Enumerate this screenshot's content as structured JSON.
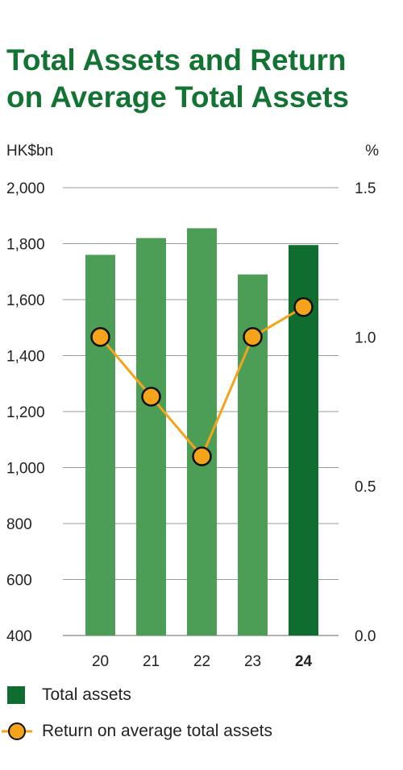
{
  "title_line1": "Total Assets and Return",
  "title_line2": "on Average Total Assets",
  "legend": {
    "total_assets": "Total assets",
    "return": "Return on average total assets"
  },
  "colors": {
    "title": "#137333",
    "bar": "#4c9e57",
    "bar_highlight": "#0f6e2f",
    "line": "#f5a31a",
    "marker_fill": "#f5a31a",
    "marker_stroke": "#111111"
  },
  "chart_data": {
    "type": "bar",
    "categories": [
      "20",
      "21",
      "22",
      "23",
      "24"
    ],
    "highlight_category": "24",
    "left_unit": "HK$bn",
    "right_unit": "%",
    "left_ticks": [
      "2,000",
      "1,800",
      "1,600",
      "1,400",
      "1,200",
      "1,000",
      "800",
      "600",
      "400"
    ],
    "right_ticks": [
      "1.5",
      "1.0",
      "0.5",
      "0.0"
    ],
    "ylim_left": [
      400,
      2000
    ],
    "ylim_right": [
      0.0,
      1.5
    ],
    "grid": true,
    "legend_position": "bottom-left",
    "series": [
      {
        "name": "Total assets",
        "type": "bar",
        "axis": "left",
        "values": [
          1760,
          1820,
          1855,
          1690,
          1795
        ]
      },
      {
        "name": "Return on average total assets",
        "type": "line",
        "axis": "right",
        "values": [
          1.0,
          0.8,
          0.6,
          1.0,
          1.1
        ]
      }
    ]
  }
}
